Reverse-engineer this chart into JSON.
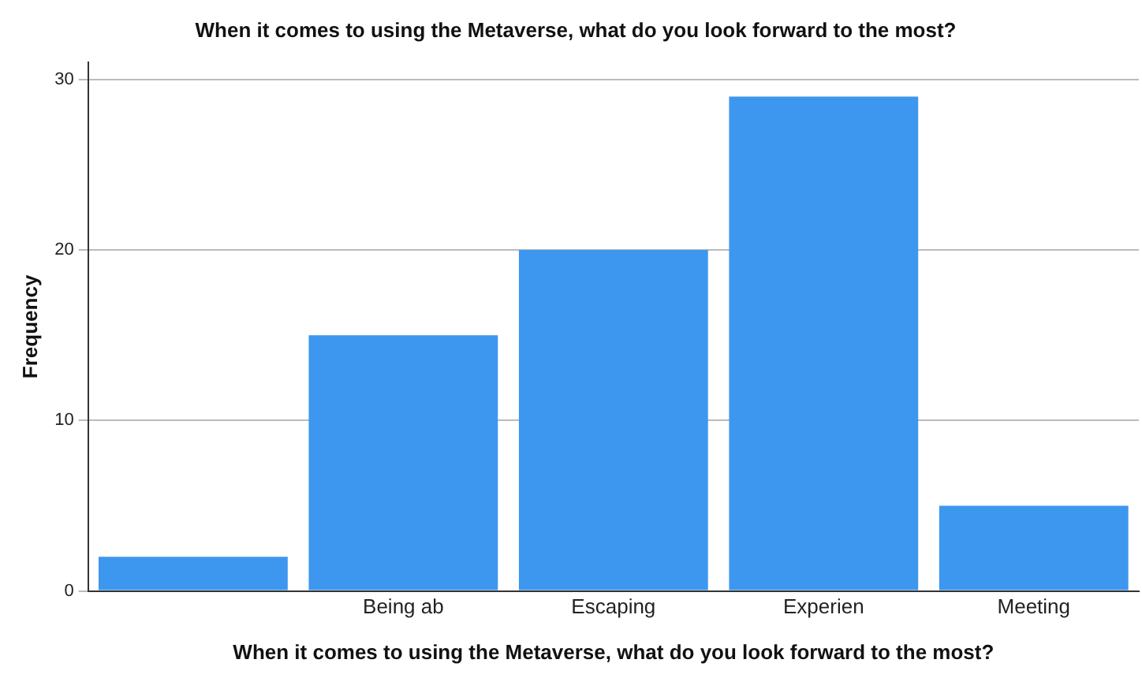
{
  "chart_data": {
    "type": "bar",
    "title": "When it comes to using the Metaverse, what do you look forward to the most?",
    "xlabel": "When it comes to using the Metaverse, what do you look forward to the most?",
    "ylabel": "Frequency",
    "categories": [
      null,
      "Being ab",
      "Escaping",
      "Experien",
      "Meeting"
    ],
    "values": [
      2,
      15,
      20,
      29,
      5
    ],
    "color": "#3d97ee",
    "ylim": [
      0,
      31
    ],
    "yticks": [
      0,
      10,
      20,
      30
    ],
    "grid": "y",
    "legend": false
  }
}
